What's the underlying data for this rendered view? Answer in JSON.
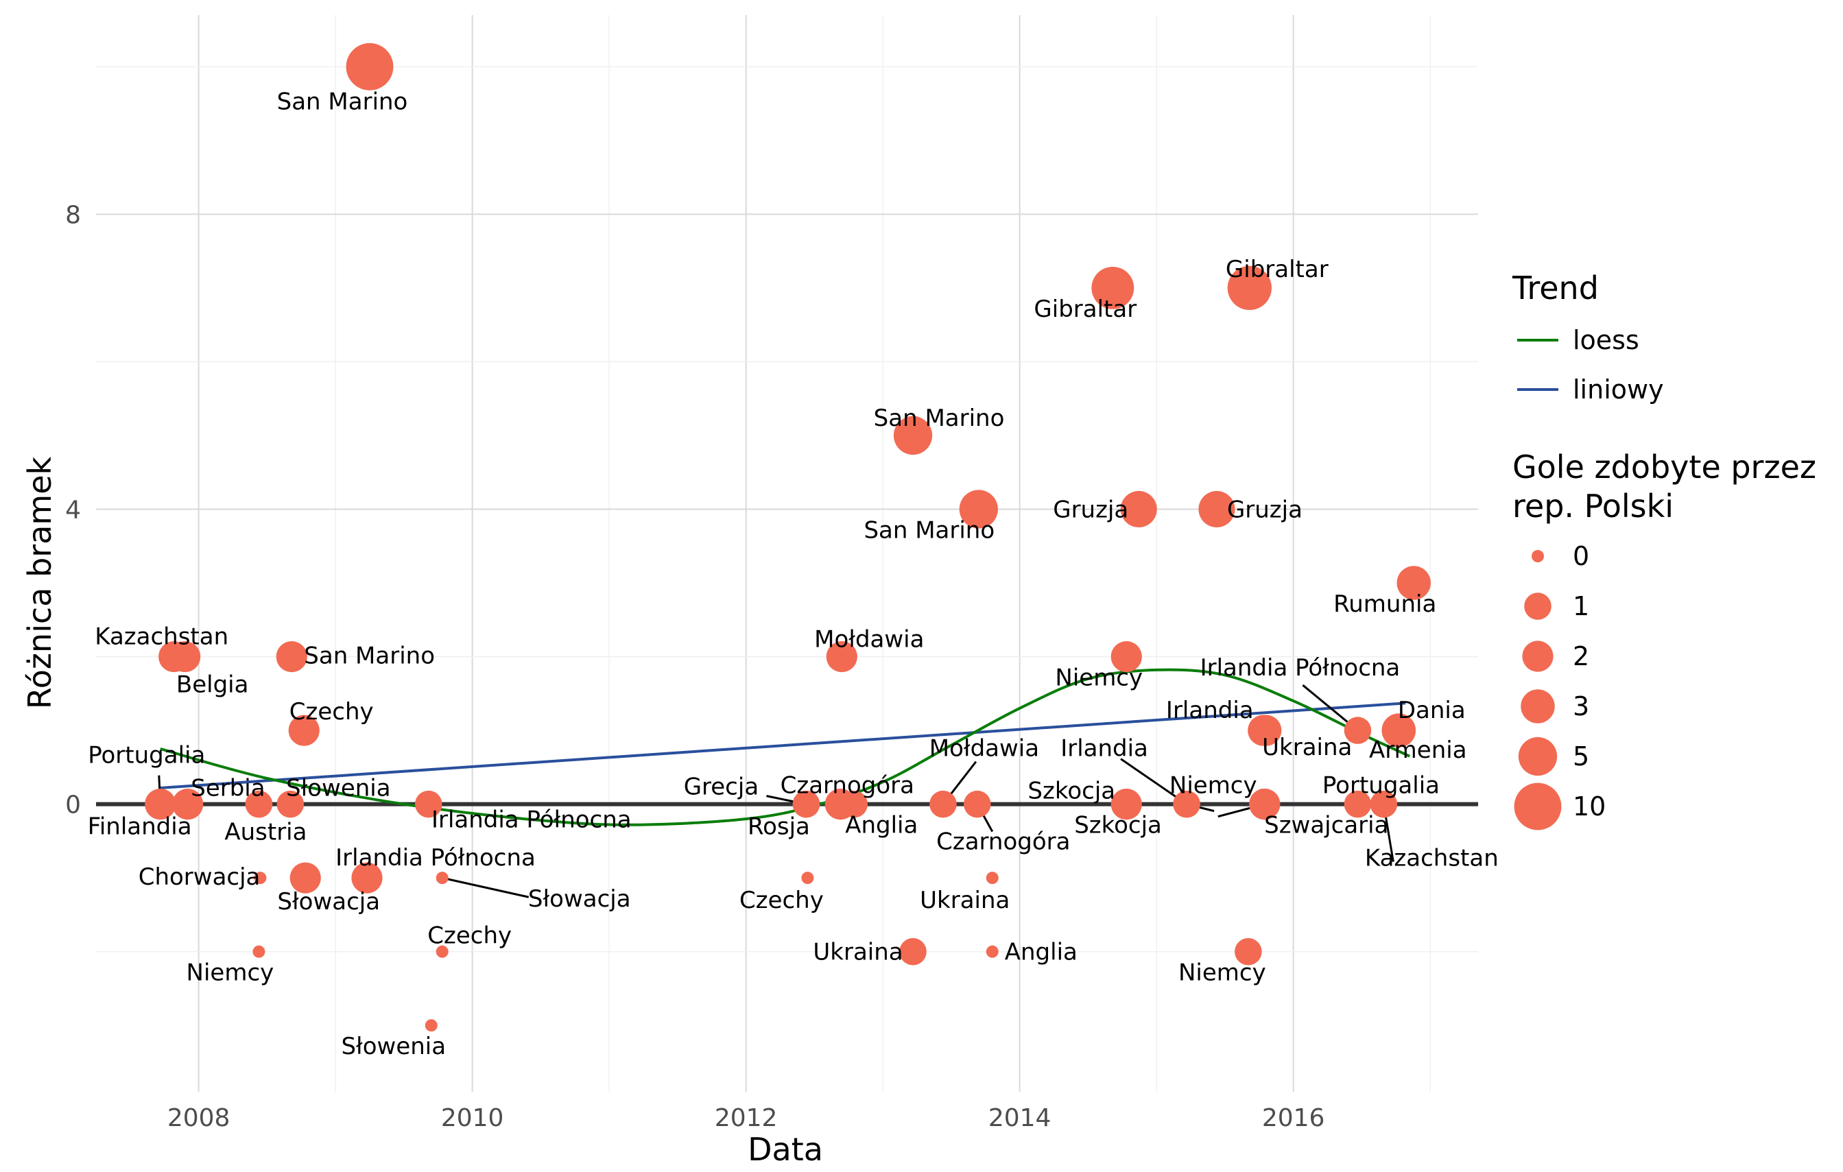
{
  "chart_data": {
    "type": "scatter",
    "xlabel": "Data",
    "ylabel": "Różnica bramek",
    "xlim": [
      2007.25,
      2017.35
    ],
    "ylim": [
      -3.9,
      10.7
    ],
    "x_ticks": [
      2008,
      2010,
      2012,
      2014,
      2016
    ],
    "y_ticks": [
      0,
      4,
      8
    ],
    "grid": true,
    "legend_placement": "right",
    "point_color": "#f26a52",
    "legend": {
      "trend_title": "Trend",
      "trend_entries": [
        {
          "label": "loess",
          "color": "#0a7d0a"
        },
        {
          "label": "liniowy",
          "color": "#2a4f9c"
        }
      ],
      "size_title_lines": [
        "Gole zdobyte przez",
        "rep. Polski"
      ],
      "size_entries": [
        {
          "label": "0",
          "value": 0
        },
        {
          "label": "1",
          "value": 1
        },
        {
          "label": "2",
          "value": 2
        },
        {
          "label": "3",
          "value": 3
        },
        {
          "label": "5",
          "value": 5
        },
        {
          "label": "10",
          "value": 10
        }
      ]
    },
    "zero_line": {
      "y": 0,
      "color": "#333333"
    },
    "linear_trend": {
      "x": [
        2007.72,
        2016.82
      ],
      "y": [
        0.22,
        1.37
      ],
      "color": "#2a4f9c"
    },
    "loess_trend": {
      "x": [
        2007.72,
        2008.5,
        2009.5,
        2010.5,
        2011.2,
        2012,
        2012.5,
        2013,
        2013.5,
        2014,
        2014.5,
        2015,
        2015.5,
        2016,
        2016.5,
        2016.85
      ],
      "y": [
        0.75,
        0.35,
        0.0,
        -0.22,
        -0.28,
        -0.2,
        -0.02,
        0.3,
        0.8,
        1.3,
        1.7,
        1.82,
        1.75,
        1.4,
        0.95,
        0.65
      ],
      "color": "#0a7d0a"
    },
    "points": [
      {
        "x": 2009.25,
        "y": 10,
        "goals": 10,
        "label": "San Marino"
      },
      {
        "x": 2007.82,
        "y": 2,
        "goals": 2,
        "label": "Kazachstan"
      },
      {
        "x": 2007.9,
        "y": 2,
        "goals": 2,
        "label": "Belgia"
      },
      {
        "x": 2008.68,
        "y": 2,
        "goals": 2,
        "label": "San Marino"
      },
      {
        "x": 2008.77,
        "y": 1,
        "goals": 2,
        "label": "Czechy"
      },
      {
        "x": 2007.72,
        "y": 0,
        "goals": 2,
        "label": "Portugalia"
      },
      {
        "x": 2007.92,
        "y": 0,
        "goals": 2,
        "label": "Finlandia"
      },
      {
        "x": 2008.44,
        "y": 0,
        "goals": 1,
        "label": "Serbia"
      },
      {
        "x": 2008.44,
        "y": 0,
        "goals": 1,
        "label": "Austria"
      },
      {
        "x": 2008.67,
        "y": 0,
        "goals": 1,
        "label": "Słowenia"
      },
      {
        "x": 2009.68,
        "y": 0,
        "goals": 1,
        "label": "Irlandia Północna"
      },
      {
        "x": 2008.45,
        "y": -1,
        "goals": 0,
        "label": "Chorwacja"
      },
      {
        "x": 2008.78,
        "y": -1,
        "goals": 2,
        "label": "Słowacja"
      },
      {
        "x": 2009.23,
        "y": -1,
        "goals": 2,
        "label": "Irlandia Północna"
      },
      {
        "x": 2009.78,
        "y": -1,
        "goals": 0,
        "label": "Słowacja"
      },
      {
        "x": 2008.44,
        "y": -2,
        "goals": 0,
        "label": "Niemcy"
      },
      {
        "x": 2009.78,
        "y": -2,
        "goals": 0,
        "label": "Czechy"
      },
      {
        "x": 2009.7,
        "y": -3,
        "goals": 0,
        "label": "Słowenia"
      },
      {
        "x": 2012.7,
        "y": 2,
        "goals": 2,
        "label": "Mołdawia"
      },
      {
        "x": 2012.44,
        "y": 0,
        "goals": 1,
        "label": "Grecja"
      },
      {
        "x": 2012.44,
        "y": 0,
        "goals": 1,
        "label": "Rosja"
      },
      {
        "x": 2012.69,
        "y": 0,
        "goals": 2,
        "label": "Czarnogóra"
      },
      {
        "x": 2012.79,
        "y": 0,
        "goals": 1,
        "label": "Anglia"
      },
      {
        "x": 2012.45,
        "y": -1,
        "goals": 0,
        "label": "Czechy"
      },
      {
        "x": 2013.22,
        "y": -2,
        "goals": 1,
        "label": "Ukraina"
      },
      {
        "x": 2013.8,
        "y": -2,
        "goals": 0,
        "label": "Anglia"
      },
      {
        "x": 2013.8,
        "y": -1,
        "goals": 0,
        "label": "Ukraina"
      },
      {
        "x": 2013.22,
        "y": 5,
        "goals": 5,
        "label": "San Marino"
      },
      {
        "x": 2013.7,
        "y": 4,
        "goals": 5,
        "label": "San Marino"
      },
      {
        "x": 2013.44,
        "y": 0,
        "goals": 1,
        "label": "Mołdawia"
      },
      {
        "x": 2013.69,
        "y": 0,
        "goals": 1,
        "label": "Czarnogóra"
      },
      {
        "x": 2014.68,
        "y": 7,
        "goals": 7,
        "label": "Gibraltar"
      },
      {
        "x": 2015.68,
        "y": 7,
        "goals": 8,
        "label": "Gibraltar"
      },
      {
        "x": 2014.87,
        "y": 4,
        "goals": 4,
        "label": "Gruzja"
      },
      {
        "x": 2015.44,
        "y": 4,
        "goals": 4,
        "label": "Gruzja"
      },
      {
        "x": 2014.78,
        "y": 2,
        "goals": 2,
        "label": "Niemcy"
      },
      {
        "x": 2014.78,
        "y": 0,
        "goals": 2,
        "label": "Szkocja"
      },
      {
        "x": 2015.22,
        "y": 0,
        "goals": 1,
        "label": "Irlandia"
      },
      {
        "x": 2015.22,
        "y": 0,
        "goals": 1,
        "label": "Szkocja"
      },
      {
        "x": 2015.78,
        "y": 1,
        "goals": 2,
        "label": "Irlandia"
      },
      {
        "x": 2015.79,
        "y": 0,
        "goals": 2,
        "label": "Niemcy"
      },
      {
        "x": 2015.79,
        "y": 0,
        "goals": 2,
        "label": "Szwajcaria"
      },
      {
        "x": 2015.67,
        "y": -2,
        "goals": 1,
        "label": "Niemcy"
      },
      {
        "x": 2015.8,
        "y": 1,
        "goals": 2,
        "label": "Ukraina"
      },
      {
        "x": 2016.47,
        "y": 1,
        "goals": 1,
        "label": "Irlandia Północna"
      },
      {
        "x": 2016.77,
        "y": 1,
        "goals": 3,
        "label": "Dania"
      },
      {
        "x": 2016.77,
        "y": 1,
        "goals": 3,
        "label": "Armenia"
      },
      {
        "x": 2016.47,
        "y": 0,
        "goals": 1,
        "label": "Portugalia"
      },
      {
        "x": 2016.66,
        "y": 0,
        "goals": 1,
        "label": "Kazachstan"
      },
      {
        "x": 2016.88,
        "y": 3,
        "goals": 3,
        "label": "Rumunia"
      }
    ]
  }
}
